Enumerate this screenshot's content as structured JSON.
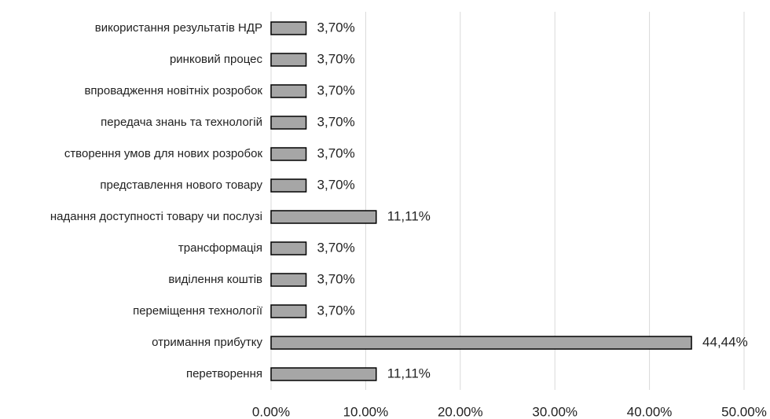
{
  "chart_data": {
    "type": "barh",
    "categories": [
      "використання результатів НДР",
      "ринковий процес",
      "впровадження новітніх розробок",
      "передача знань та технологій",
      "створення умов для нових розробок",
      "представлення нового товару",
      "надання доступності товару чи послузі",
      "трансформація",
      "виділення коштів",
      "переміщення технології",
      "отримання прибутку",
      "перетворення"
    ],
    "values": [
      3.7,
      3.7,
      3.7,
      3.7,
      3.7,
      3.7,
      11.11,
      3.7,
      3.7,
      3.7,
      44.44,
      11.11
    ],
    "value_labels": [
      "3,70%",
      "3,70%",
      "3,70%",
      "3,70%",
      "3,70%",
      "3,70%",
      "11,11%",
      "3,70%",
      "3,70%",
      "3,70%",
      "44,44%",
      "11,11%"
    ],
    "color": "#a6a6a6",
    "xlim": [
      0,
      50
    ],
    "xticks": [
      {
        "value": 0,
        "label": "0.00%"
      },
      {
        "value": 10,
        "label": "10.00%"
      },
      {
        "value": 20,
        "label": "20.00%"
      },
      {
        "value": 30,
        "label": "30.00%"
      },
      {
        "value": 40,
        "label": "40.00%"
      },
      {
        "value": 50,
        "label": "50.00%"
      }
    ],
    "grid": true
  }
}
